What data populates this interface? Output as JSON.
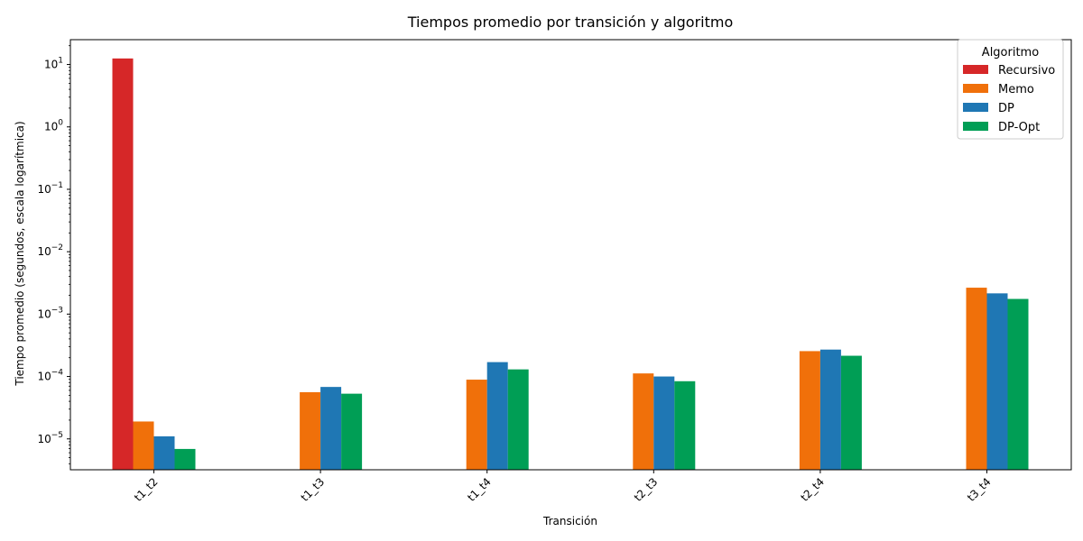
{
  "chart_data": {
    "type": "bar",
    "title": "Tiempos promedio por transición y algoritmo",
    "xlabel": "Transición",
    "ylabel": "Tiempo promedio (segundos, escala logarítmica)",
    "yscale": "log",
    "ylim": [
      3.2e-06,
      25
    ],
    "y_ticks": [
      {
        "value": 1e-05,
        "base": "10",
        "exp": "−5"
      },
      {
        "value": 0.0001,
        "base": "10",
        "exp": "−4"
      },
      {
        "value": 0.001,
        "base": "10",
        "exp": "−3"
      },
      {
        "value": 0.01,
        "base": "10",
        "exp": "−2"
      },
      {
        "value": 0.1,
        "base": "10",
        "exp": "−1"
      },
      {
        "value": 1,
        "base": "10",
        "exp": "0"
      },
      {
        "value": 10,
        "base": "10",
        "exp": "1"
      }
    ],
    "categories": [
      "t1_t2",
      "t1_t3",
      "t1_t4",
      "t2_t3",
      "t2_t4",
      "t3_t4"
    ],
    "legend": {
      "title": "Algoritmo",
      "position": "top-right"
    },
    "grid": false,
    "series": [
      {
        "name": "Recursivo",
        "color": "#d62728",
        "values": [
          12.5,
          null,
          null,
          null,
          null,
          null
        ]
      },
      {
        "name": "Memo",
        "color": "#f0700a",
        "values": [
          1.9e-05,
          5.6e-05,
          8.9e-05,
          0.000112,
          0.000255,
          0.00265
        ]
      },
      {
        "name": "DP",
        "color": "#1f77b4",
        "values": [
          1.1e-05,
          6.8e-05,
          0.00017,
          0.0001,
          0.00027,
          0.00215
        ]
      },
      {
        "name": "DP-Opt",
        "color": "#009e55",
        "values": [
          6.9e-06,
          5.3e-05,
          0.00013,
          8.4e-05,
          0.000215,
          0.00175
        ]
      }
    ]
  }
}
